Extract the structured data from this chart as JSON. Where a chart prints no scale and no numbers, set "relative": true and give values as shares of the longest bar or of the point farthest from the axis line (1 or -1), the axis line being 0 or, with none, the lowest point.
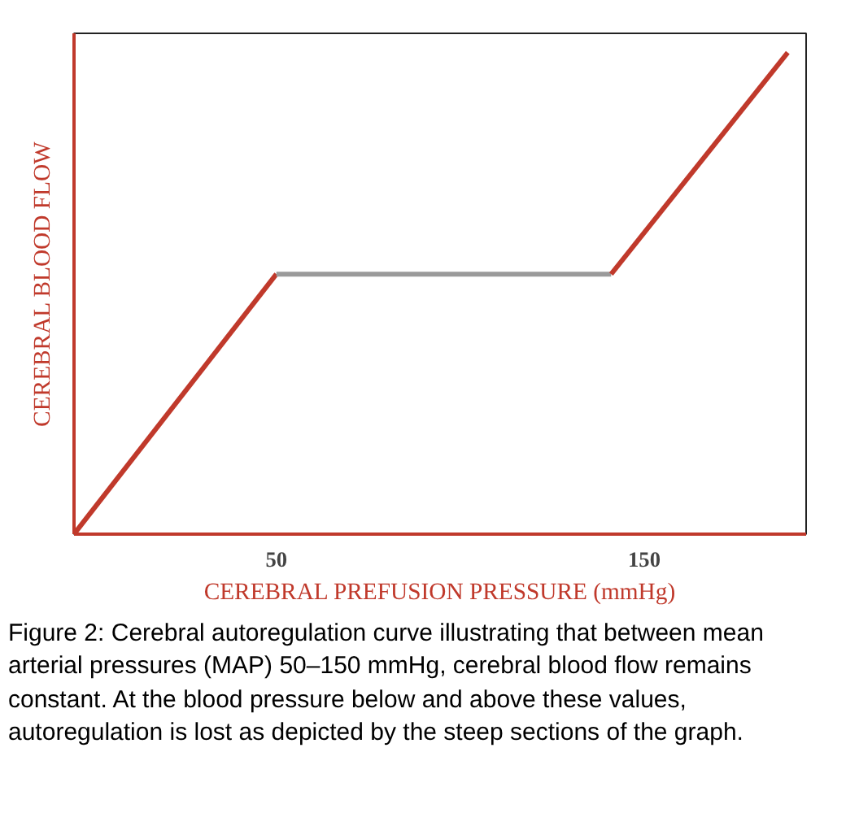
{
  "chart_data": {
    "type": "line",
    "relative": true,
    "xlabel": "CEREBRAL PREFUSION PRESSURE (mmHg)",
    "ylabel": "CEREBRAL BLOOD FLOW",
    "xlim": [
      -5,
      194
    ],
    "xticks": [
      50,
      150
    ],
    "grid": false,
    "marker": "none",
    "line_style": "solid",
    "series": [
      {
        "color": "#c0392b",
        "x": [
          -5,
          50
        ],
        "values": [
          0,
          0.54
        ]
      },
      {
        "color": "#9a9a9a",
        "x": [
          50,
          141
        ],
        "values": [
          0.54,
          0.54
        ]
      },
      {
        "color": "#c0392b",
        "x": [
          141,
          189
        ],
        "values": [
          0.54,
          1
        ]
      }
    ],
    "annotations": [
      "Figure 2: Cerebral autoregulation curve illustrating that between mean arterial pressures (MAP) 50–150 mmHg, cerebral blood flow remains constant. At the blood pressure below and above these values, autoregulation is lost as depicted by the steep sections of the graph."
    ]
  }
}
